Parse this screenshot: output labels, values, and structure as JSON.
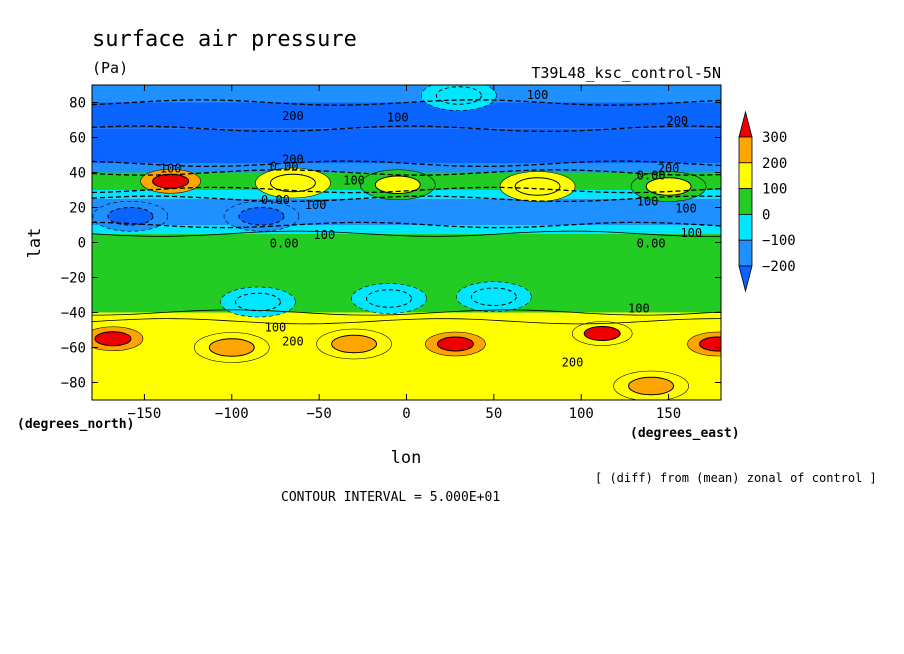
{
  "chart_data": {
    "type": "heatmap",
    "title": "surface air pressure",
    "units": "(Pa)",
    "experiment": "T39L48_ksc_control-5N",
    "xlabel": "lon",
    "ylabel": "lat",
    "x_units": "(degrees_east)",
    "y_units": "(degrees_north)",
    "xlim": [
      -180,
      180
    ],
    "ylim": [
      -90,
      90
    ],
    "x_ticks": [
      -150,
      -100,
      -50,
      0,
      50,
      100,
      150
    ],
    "y_ticks": [
      -80,
      -60,
      -40,
      -20,
      0,
      20,
      40,
      60,
      80
    ],
    "x_tick_labels": [
      "−150",
      "−100",
      "−50",
      "0",
      "50",
      "100",
      "150"
    ],
    "y_tick_labels": [
      "−80",
      "−60",
      "−40",
      "−20",
      "0",
      "20",
      "40",
      "60",
      "80"
    ],
    "contour_interval": 50,
    "contour_interval_text": "CONTOUR INTERVAL = 5.000E+01",
    "footnote": "[ (diff) from (mean) zonal of control ]",
    "colorbar": {
      "levels": [
        -200,
        -100,
        0,
        100,
        200,
        300
      ],
      "labels": [
        "−200",
        "−100",
        "0",
        "100",
        "200",
        "300"
      ],
      "colors": [
        "#0a64ff",
        "#00c8ff",
        "#00dcff",
        "#1ed21e",
        "#ffff00",
        "#ffa000",
        "#ee0000"
      ],
      "fill_colors": [
        "#1e90ff",
        "#00e6ff",
        "#22cc22",
        "#ffff00",
        "#ffa500",
        "#ee0000"
      ],
      "extends": "both"
    },
    "zonal_bands": [
      {
        "lat": [
          80,
          90
        ],
        "value": -120
      },
      {
        "lat": [
          65,
          80
        ],
        "value": -220
      },
      {
        "lat": [
          45,
          65
        ],
        "value": -230
      },
      {
        "lat": [
          40,
          45
        ],
        "value": -120
      },
      {
        "lat": [
          30,
          40
        ],
        "value": 80
      },
      {
        "lat": [
          25,
          30
        ],
        "value": -60
      },
      {
        "lat": [
          10,
          25
        ],
        "value": -150
      },
      {
        "lat": [
          5,
          10
        ],
        "value": -60
      },
      {
        "lat": [
          -40,
          5
        ],
        "value": 30
      },
      {
        "lat": [
          -45,
          -40
        ],
        "value": 120
      },
      {
        "lat": [
          -90,
          -45
        ],
        "value": 160
      }
    ],
    "anomalies": [
      {
        "lon": -135,
        "lat": 35,
        "value": 320
      },
      {
        "lon": -65,
        "lat": 34,
        "value": 190
      },
      {
        "lon": -5,
        "lat": 33,
        "value": 150
      },
      {
        "lon": 75,
        "lat": 32,
        "value": 160
      },
      {
        "lon": 150,
        "lat": 32,
        "value": 150
      },
      {
        "lon": -158,
        "lat": 15,
        "value": -230
      },
      {
        "lon": -83,
        "lat": 15,
        "value": -240
      },
      {
        "lon": -85,
        "lat": -34,
        "value": -80
      },
      {
        "lon": -10,
        "lat": -32,
        "value": -60
      },
      {
        "lon": 50,
        "lat": -31,
        "value": -50
      },
      {
        "lon": -168,
        "lat": -55,
        "value": 320
      },
      {
        "lon": -100,
        "lat": -60,
        "value": 240
      },
      {
        "lon": -30,
        "lat": -58,
        "value": 230
      },
      {
        "lon": 28,
        "lat": -58,
        "value": 330
      },
      {
        "lon": 112,
        "lat": -52,
        "value": 300
      },
      {
        "lon": 178,
        "lat": -58,
        "value": 310
      },
      {
        "lon": 140,
        "lat": -82,
        "value": 210
      },
      {
        "lon": 30,
        "lat": 84,
        "value": -90
      }
    ],
    "contour_labels": [
      {
        "text": "100",
        "lon": 75,
        "lat": 85
      },
      {
        "text": "100",
        "lon": -5,
        "lat": 72
      },
      {
        "text": "200",
        "lon": -65,
        "lat": 73
      },
      {
        "text": "200",
        "lon": 155,
        "lat": 70
      },
      {
        "text": "200",
        "lon": -65,
        "lat": 48
      },
      {
        "text": "200",
        "lon": 150,
        "lat": 43
      },
      {
        "text": "0.00",
        "lon": -70,
        "lat": 44
      },
      {
        "text": "0.00",
        "lon": 140,
        "lat": 39
      },
      {
        "text": "100",
        "lon": -30,
        "lat": 36
      },
      {
        "text": "100",
        "lon": -135,
        "lat": 43
      },
      {
        "text": "0.00",
        "lon": -75,
        "lat": 25
      },
      {
        "text": "100",
        "lon": -52,
        "lat": 22
      },
      {
        "text": "100",
        "lon": 138,
        "lat": 24
      },
      {
        "text": "100",
        "lon": 160,
        "lat": 20
      },
      {
        "text": "100",
        "lon": -47,
        "lat": 5
      },
      {
        "text": "0.00",
        "lon": -70,
        "lat": 0
      },
      {
        "text": "0.00",
        "lon": 140,
        "lat": 0
      },
      {
        "text": "100",
        "lon": 163,
        "lat": 6
      },
      {
        "text": "100",
        "lon": 133,
        "lat": -37
      },
      {
        "text": "100",
        "lon": -75,
        "lat": -48
      },
      {
        "text": "200",
        "lon": -65,
        "lat": -56
      },
      {
        "text": "200",
        "lon": 95,
        "lat": -68
      }
    ]
  }
}
